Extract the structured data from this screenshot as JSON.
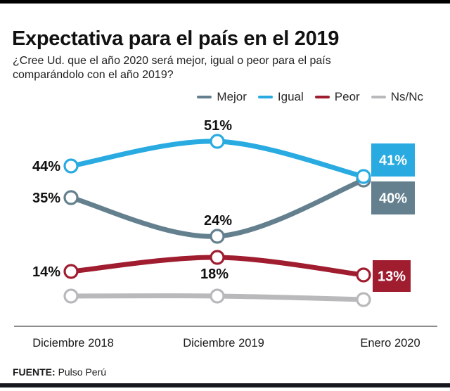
{
  "header": {
    "title": "Expectativa para el país en el 2019",
    "subtitle": "¿Cree Ud. que el año 2020 será mejor, igual o peor para el país comparándolo con el año 2019?"
  },
  "legend": {
    "items": [
      {
        "label": "Mejor",
        "color": "#64808e"
      },
      {
        "label": "Igual",
        "color": "#29abe2"
      },
      {
        "label": "Peor",
        "color": "#a01d30"
      },
      {
        "label": "Ns/Nc",
        "color": "#b9b9bb"
      }
    ]
  },
  "footer": {
    "source_label": "FUENTE:",
    "source_value": "Pulso Perú"
  },
  "colors": {
    "top_bar": "#000000",
    "bottom_bar": "#17171f",
    "axis_line": "#8c8c8c",
    "value_label_text": "#111111",
    "box_text": "#ffffff"
  },
  "chart_data": {
    "type": "line",
    "categories": [
      "Diciembre 2018",
      "Diciembre 2019",
      "Enero 2020"
    ],
    "series": [
      {
        "name": "Mejor",
        "color": "#64808e",
        "values": [
          35,
          24,
          40
        ],
        "labels": [
          "35%",
          "24%",
          "40%"
        ],
        "label_positions": [
          "left",
          "above",
          "box"
        ],
        "labels_shown": true
      },
      {
        "name": "Igual",
        "color": "#29abe2",
        "values": [
          44,
          51,
          41
        ],
        "labels": [
          "44%",
          "51%",
          "41%"
        ],
        "label_positions": [
          "left",
          "above",
          "box"
        ],
        "labels_shown": true
      },
      {
        "name": "Peor",
        "color": "#a01d30",
        "values": [
          14,
          18,
          13
        ],
        "labels": [
          "14%",
          "18%",
          "13%"
        ],
        "label_positions": [
          "left",
          "below",
          "box"
        ],
        "labels_shown": true
      },
      {
        "name": "Ns/Nc",
        "color": "#b9b9bb",
        "values": [
          7,
          7,
          6
        ],
        "labels": [],
        "label_positions": [
          "none",
          "none",
          "none"
        ],
        "labels_shown": false,
        "values_estimated": true
      }
    ],
    "draw_order": [
      "Ns/Nc",
      "Peor",
      "Mejor",
      "Igual"
    ],
    "title": "Expectativa para el país en el 2019",
    "xlabel": "",
    "ylabel": "",
    "ylim": [
      0,
      60
    ],
    "grid": false,
    "legend_position": "top",
    "marker": "open-circle",
    "end_value_boxes": true
  }
}
